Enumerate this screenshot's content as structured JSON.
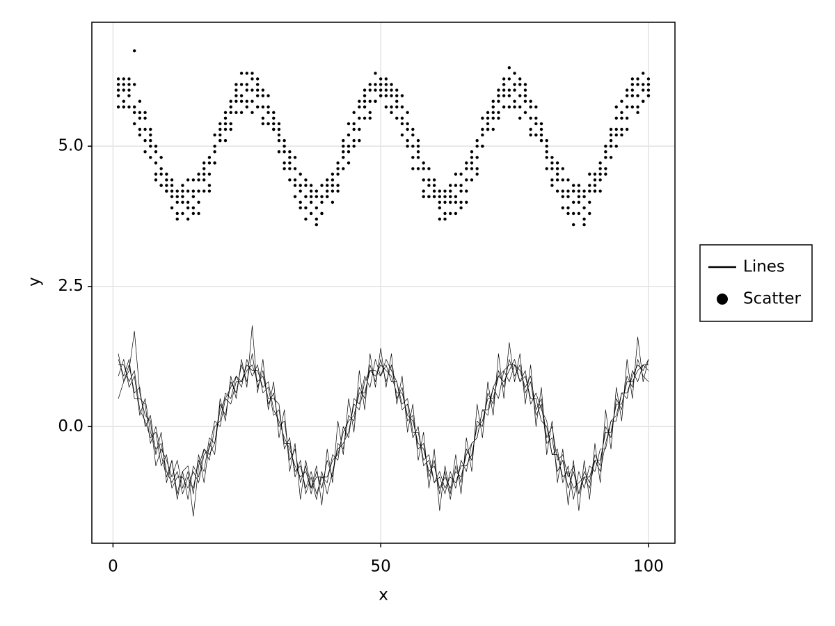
{
  "chart_data": {
    "type": "line",
    "xlabel": "x",
    "ylabel": "y",
    "xlim": [
      -3.95,
      104.95
    ],
    "ylim": [
      -2.08,
      7.21
    ],
    "xticks": [
      0,
      50,
      100
    ],
    "yticks": [
      {
        "value": 0,
        "label": "0.0"
      },
      {
        "value": 2.5,
        "label": "2.5"
      },
      {
        "value": 5,
        "label": "5.0"
      }
    ],
    "grid": true,
    "legend": "right",
    "x": [
      1,
      2,
      3,
      4,
      5,
      6,
      7,
      8,
      9,
      10,
      11,
      12,
      13,
      14,
      15,
      16,
      17,
      18,
      19,
      20,
      21,
      22,
      23,
      24,
      25,
      26,
      27,
      28,
      29,
      30,
      31,
      32,
      33,
      34,
      35,
      36,
      37,
      38,
      39,
      40,
      41,
      42,
      43,
      44,
      45,
      46,
      47,
      48,
      49,
      50,
      51,
      52,
      53,
      54,
      55,
      56,
      57,
      58,
      59,
      60,
      61,
      62,
      63,
      64,
      65,
      66,
      67,
      68,
      69,
      70,
      71,
      72,
      73,
      74,
      75,
      76,
      77,
      78,
      79,
      80,
      81,
      82,
      83,
      84,
      85,
      86,
      87,
      88,
      89,
      90,
      91,
      92,
      93,
      94,
      95,
      96,
      97,
      98,
      99,
      100
    ],
    "series": [
      {
        "name": "Lines",
        "type": "line",
        "color": "#000000",
        "values": [
          [
            1.2,
            0.9,
            1.2,
            0.5,
            0.5,
            0.4,
            -0.3,
            0.0,
            -0.5,
            -0.9,
            -0.6,
            -1.2,
            -0.8,
            -1.3,
            -0.7,
            -0.9,
            -0.4,
            -0.6,
            0.0,
            0.1,
            0.6,
            0.5,
            0.9,
            0.7,
            1.2,
            0.9,
            1.1,
            0.6,
            0.7,
            0.2,
            0.3,
            -0.3,
            -0.3,
            -0.8,
            -0.7,
            -1.1,
            -0.8,
            -1.2,
            -0.9,
            -1.0,
            -0.5,
            -0.6,
            0.0,
            -0.2,
            0.5,
            0.4,
            0.9,
            0.7,
            1.2,
            0.9,
            1.1,
            0.8,
            0.8,
            0.3,
            0.4,
            -0.2,
            0.0,
            -0.7,
            -0.6,
            -1.0,
            -0.9,
            -1.2,
            -0.8,
            -1.1,
            -0.6,
            -0.8,
            -0.3,
            -0.2,
            0.3,
            0.2,
            0.7,
            0.5,
            1.0,
            0.8,
            1.1,
            1.0,
            0.7,
            0.9,
            0.3,
            0.5,
            -0.2,
            0.0,
            -0.6,
            -0.5,
            -0.9,
            -0.7,
            -1.2,
            -0.9,
            -1.1,
            -0.6,
            -0.8,
            -0.3,
            0.1,
            0.2,
            0.6,
            0.5,
            1.0,
            0.8,
            1.1,
            1.0
          ],
          [
            0.9,
            1.2,
            0.7,
            0.9,
            0.2,
            0.5,
            -0.1,
            -0.4,
            -0.3,
            -0.8,
            -1.0,
            -0.8,
            -1.2,
            -0.9,
            -1.1,
            -0.6,
            -0.8,
            -0.2,
            -0.3,
            0.4,
            0.2,
            0.8,
            0.6,
            1.1,
            0.8,
            1.3,
            0.7,
            1.0,
            0.4,
            0.6,
            0.0,
            0.1,
            -0.6,
            -0.4,
            -1.0,
            -0.7,
            -1.2,
            -0.8,
            -1.1,
            -0.6,
            -0.9,
            -0.3,
            -0.4,
            0.2,
            0.1,
            0.7,
            0.5,
            1.1,
            0.8,
            1.2,
            0.8,
            1.1,
            0.5,
            0.7,
            0.1,
            0.2,
            -0.4,
            -0.3,
            -0.9,
            -0.6,
            -1.2,
            -0.8,
            -1.3,
            -0.7,
            -1.0,
            -0.4,
            -0.6,
            0.1,
            0.0,
            0.6,
            0.4,
            1.0,
            0.7,
            1.2,
            0.9,
            1.1,
            0.6,
            0.8,
            0.2,
            0.4,
            -0.3,
            -0.2,
            -0.8,
            -0.6,
            -1.1,
            -0.8,
            -1.2,
            -0.8,
            -1.0,
            -0.5,
            -0.7,
            0.0,
            -0.2,
            0.5,
            0.3,
            0.9,
            0.7,
            1.2,
            0.9,
            0.8
          ],
          [
            0.5,
            0.8,
            1.1,
            0.6,
            0.7,
            0.0,
            0.2,
            -0.5,
            -0.1,
            -1.0,
            -0.6,
            -1.3,
            -0.8,
            -0.7,
            -1.2,
            -0.5,
            -1.0,
            -0.3,
            -0.5,
            0.5,
            0.1,
            0.9,
            0.5,
            1.2,
            0.7,
            1.8,
            0.6,
            1.2,
            0.3,
            0.8,
            -0.2,
            0.3,
            -0.8,
            -0.3,
            -1.3,
            -0.6,
            -1.1,
            -0.7,
            -1.4,
            -0.4,
            -1.0,
            0.1,
            -0.5,
            0.5,
            -0.1,
            1.0,
            0.3,
            1.3,
            0.7,
            1.4,
            0.7,
            1.3,
            0.4,
            0.9,
            -0.1,
            0.4,
            -0.6,
            -0.1,
            -1.1,
            -0.4,
            -1.5,
            -0.7,
            -1.2,
            -0.5,
            -1.2,
            -0.2,
            -0.8,
            0.4,
            -0.2,
            0.8,
            0.2,
            1.3,
            0.5,
            1.5,
            0.8,
            1.3,
            0.4,
            1.1,
            0.0,
            0.7,
            -0.5,
            0.1,
            -1.0,
            -0.4,
            -1.4,
            -0.6,
            -1.5,
            -0.6,
            -1.3,
            -0.3,
            -1.0,
            0.3,
            -0.4,
            0.7,
            0.1,
            1.2,
            0.5,
            1.6,
            0.8,
            1.2
          ],
          [
            1.1,
            1.1,
            0.8,
            1.0,
            0.3,
            0.1,
            -0.2,
            -0.1,
            -0.7,
            -0.5,
            -1.1,
            -0.9,
            -0.9,
            -1.1,
            -0.8,
            -1.0,
            -0.5,
            -0.4,
            0.1,
            0.0,
            0.5,
            0.7,
            0.9,
            0.8,
            1.1,
            1.0,
            1.0,
            0.7,
            0.8,
            0.3,
            0.1,
            -0.2,
            -0.4,
            -0.7,
            -0.9,
            -0.8,
            -1.1,
            -0.9,
            -0.9,
            -0.9,
            -0.6,
            -0.5,
            -0.1,
            0.1,
            0.2,
            0.6,
            0.6,
            1.0,
            0.9,
            1.1,
            1.0,
            0.9,
            0.6,
            0.6,
            0.2,
            0.1,
            -0.3,
            -0.4,
            -0.8,
            -0.7,
            -1.1,
            -0.9,
            -1.1,
            -0.8,
            -0.9,
            -0.5,
            -0.3,
            -0.2,
            0.3,
            0.3,
            0.7,
            0.9,
            1.0,
            1.1,
            1.1,
            0.8,
            0.9,
            0.5,
            0.5,
            0.1,
            0.0,
            -0.5,
            -0.5,
            -0.9,
            -0.8,
            -1.1,
            -1.0,
            -0.9,
            -0.9,
            -0.6,
            -0.6,
            -0.1,
            -0.1,
            0.4,
            0.4,
            0.8,
            0.8,
            1.0,
            1.1,
            1.1
          ],
          [
            1.3,
            0.8,
            1.0,
            1.7,
            0.6,
            0.2,
            0.1,
            -0.7,
            -0.4,
            -0.6,
            -0.9,
            -0.6,
            -1.1,
            -0.8,
            -1.6,
            -0.7,
            -0.4,
            -0.5,
            -0.3,
            0.3,
            0.5,
            0.4,
            0.8,
            0.8,
            1.0,
            1.1,
            0.8,
            0.9,
            0.5,
            0.5,
            0.4,
            -0.4,
            -0.2,
            -0.9,
            -0.6,
            -1.2,
            -0.9,
            -1.3,
            -0.8,
            -1.2,
            -0.8,
            -0.4,
            -0.3,
            -0.1,
            0.4,
            0.3,
            0.8,
            1.0,
            1.0,
            0.9,
            1.2,
            1.0,
            0.8,
            0.4,
            0.5,
            -0.1,
            -0.1,
            -0.6,
            -0.5,
            -1.0,
            -0.8,
            -1.1,
            -0.9,
            -1.0,
            -0.7,
            -0.7,
            -0.5,
            0.0,
            0.1,
            0.5,
            0.5,
            0.9,
            0.8,
            1.0,
            1.2,
            0.8,
            1.0,
            0.4,
            0.6,
            0.3,
            0.1,
            -0.5,
            -0.4,
            -1.0,
            -0.7,
            -1.3,
            -0.8,
            -1.1,
            -0.7,
            -0.8,
            -0.4,
            -0.4,
            0.1,
            0.1,
            0.6,
            0.6,
            0.9,
            1.1,
            1.0,
            1.2
          ]
        ]
      },
      {
        "name": "Scatter",
        "type": "scatter",
        "color": "#000000",
        "values": [
          [
            6.2,
            5.7,
            6.0,
            6.1,
            5.3,
            5.3,
            5.3,
            4.7,
            4.3,
            4.4,
            4.4,
            3.7,
            4.1,
            4.4,
            3.9,
            4.2,
            4.7,
            4.5,
            4.7,
            5.3,
            5.6,
            5.3,
            5.9,
            6.3,
            5.8,
            6.0,
            6.2,
            5.7,
            5.4,
            5.5,
            5.4,
            4.6,
            4.7,
            4.8,
            4.0,
            4.1,
            4.3,
            3.9,
            3.8,
            4.3,
            4.5,
            4.2,
            4.9,
            5.4,
            5.1,
            5.5,
            6.0,
            5.8,
            5.8,
            6.1,
            6.2,
            5.6,
            5.8,
            5.9,
            5.1,
            5.0,
            5.1,
            4.4,
            4.1,
            4.3,
            4.2,
            3.7,
            4.1,
            4.5,
            4.0,
            4.4,
            4.9,
            4.8,
            5.0,
            5.5,
            5.8,
            5.5,
            6.0,
            6.4,
            5.8,
            5.9,
            6.1,
            5.5,
            5.2,
            5.3,
            5.1,
            4.3,
            4.5,
            4.6,
            3.9,
            4.0,
            4.3,
            3.9,
            3.8,
            4.4,
            4.7,
            4.5,
            5.1,
            5.7,
            5.3,
            5.7,
            6.2,
            5.9,
            5.8,
            6.1
          ],
          [
            5.7,
            6.2,
            5.9,
            5.6,
            5.8,
            4.9,
            5.1,
            5.0,
            4.3,
            4.3,
            3.9,
            4.2,
            4.0,
            3.9,
            4.4,
            3.8,
            4.5,
            4.8,
            4.7,
            5.2,
            5.1,
            5.8,
            5.8,
            5.8,
            6.3,
            5.6,
            6.0,
            6.0,
            5.4,
            5.4,
            4.9,
            5.1,
            4.6,
            4.3,
            4.5,
            3.7,
            4.1,
            4.2,
            3.8,
            4.2,
            4.0,
            4.7,
            4.8,
            4.9,
            5.6,
            5.1,
            5.8,
            6.1,
            5.8,
            6.0,
            5.7,
            6.1,
            5.7,
            5.4,
            5.6,
            4.6,
            4.9,
            4.7,
            4.1,
            4.2,
            3.7,
            4.2,
            4.0,
            4.0,
            4.5,
            4.0,
            4.7,
            5.1,
            5.0,
            5.4,
            5.3,
            6.0,
            5.9,
            5.9,
            6.3,
            5.5,
            5.9,
            5.8,
            5.2,
            5.2,
            4.6,
            4.8,
            4.4,
            4.1,
            4.4,
            3.6,
            4.1,
            4.2,
            4.0,
            4.3,
            4.2,
            5.0,
            5.0,
            5.2,
            5.8,
            5.3,
            6.0,
            6.2,
            5.8,
            6.0
          ],
          [
            6.1,
            6.0,
            5.7,
            6.7,
            5.6,
            5.6,
            4.8,
            4.5,
            4.6,
            4.2,
            4.3,
            4.0,
            3.8,
            4.2,
            4.2,
            4.5,
            4.2,
            4.3,
            5.0,
            5.1,
            5.5,
            5.6,
            5.6,
            6.1,
            6.1,
            6.3,
            5.7,
            5.5,
            5.7,
            5.3,
            5.3,
            4.9,
            4.4,
            4.6,
            4.3,
            4.4,
            3.8,
            3.7,
            4.1,
            4.1,
            4.4,
            4.5,
            4.6,
            5.2,
            5.4,
            5.8,
            5.5,
            5.6,
            6.1,
            5.9,
            6.1,
            5.9,
            5.5,
            5.7,
            5.4,
            5.3,
            4.6,
            4.2,
            4.4,
            4.1,
            4.1,
            4.0,
            3.8,
            4.3,
            4.3,
            4.7,
            4.4,
            4.6,
            5.3,
            5.3,
            5.7,
            5.8,
            5.7,
            6.2,
            6.1,
            6.2,
            5.6,
            5.3,
            5.5,
            5.1,
            5.0,
            4.6,
            4.2,
            4.4,
            4.2,
            4.3,
            3.8,
            3.7,
            4.3,
            4.2,
            4.6,
            4.8,
            4.8,
            5.5,
            5.6,
            6.0,
            5.7,
            5.7,
            6.1,
            5.9
          ],
          [
            6.0,
            6.1,
            6.2,
            5.4,
            5.5,
            5.1,
            5.2,
            4.9,
            4.5,
            4.5,
            4.2,
            4.1,
            4.3,
            3.7,
            4.1,
            4.0,
            4.6,
            4.7,
            4.9,
            5.4,
            5.4,
            5.7,
            6.1,
            5.6,
            6.0,
            5.8,
            6.1,
            5.9,
            5.6,
            5.6,
            5.2,
            5.0,
            4.9,
            4.1,
            4.2,
            3.9,
            4.2,
            4.1,
            4.0,
            4.4,
            4.3,
            4.6,
            5.1,
            4.7,
            5.3,
            5.3,
            5.9,
            6.0,
            6.0,
            6.2,
            6.0,
            6.0,
            6.0,
            5.2,
            5.3,
            4.8,
            5.0,
            4.6,
            4.3,
            4.4,
            4.0,
            4.1,
            4.3,
            3.8,
            4.2,
            4.2,
            4.8,
            5.0,
            5.2,
            5.6,
            5.6,
            5.9,
            6.2,
            5.7,
            6.0,
            5.7,
            6.0,
            5.7,
            5.4,
            5.4,
            4.9,
            4.7,
            4.7,
            3.9,
            4.1,
            3.8,
            4.2,
            4.1,
            4.2,
            4.5,
            4.5,
            4.9,
            5.3,
            5.0,
            5.5,
            5.5,
            6.1,
            6.1,
            6.0,
            6.2
          ],
          [
            5.9,
            5.8,
            6.1,
            5.7,
            5.2,
            5.5,
            5.0,
            4.4,
            4.8,
            4.2,
            4.1,
            3.8,
            4.2,
            4.0,
            3.8,
            4.4,
            4.4,
            4.2,
            5.2,
            5.1,
            5.3,
            5.4,
            6.0,
            5.9,
            5.7,
            6.2,
            5.9,
            5.4,
            5.9,
            5.3,
            5.1,
            4.7,
            4.8,
            4.4,
            3.9,
            4.3,
            4.0,
            3.6,
            4.3,
            4.1,
            4.2,
            4.3,
            5.0,
            5.0,
            5.0,
            5.7,
            5.7,
            5.5,
            6.3,
            5.9,
            5.9,
            5.7,
            5.9,
            5.5,
            5.0,
            5.2,
            4.8,
            4.1,
            4.6,
            4.1,
            3.9,
            3.8,
            4.2,
            4.1,
            3.9,
            4.6,
            4.6,
            4.5,
            5.5,
            5.3,
            5.5,
            5.6,
            6.1,
            6.0,
            5.7,
            6.1,
            5.8,
            5.2,
            5.7,
            5.1,
            4.8,
            4.4,
            4.6,
            4.2,
            3.8,
            4.2,
            4.0,
            3.6,
            4.5,
            4.2,
            4.4,
            4.6,
            5.2,
            5.3,
            5.2,
            5.9,
            5.9,
            5.6,
            6.3,
            5.9
          ]
        ]
      }
    ]
  }
}
